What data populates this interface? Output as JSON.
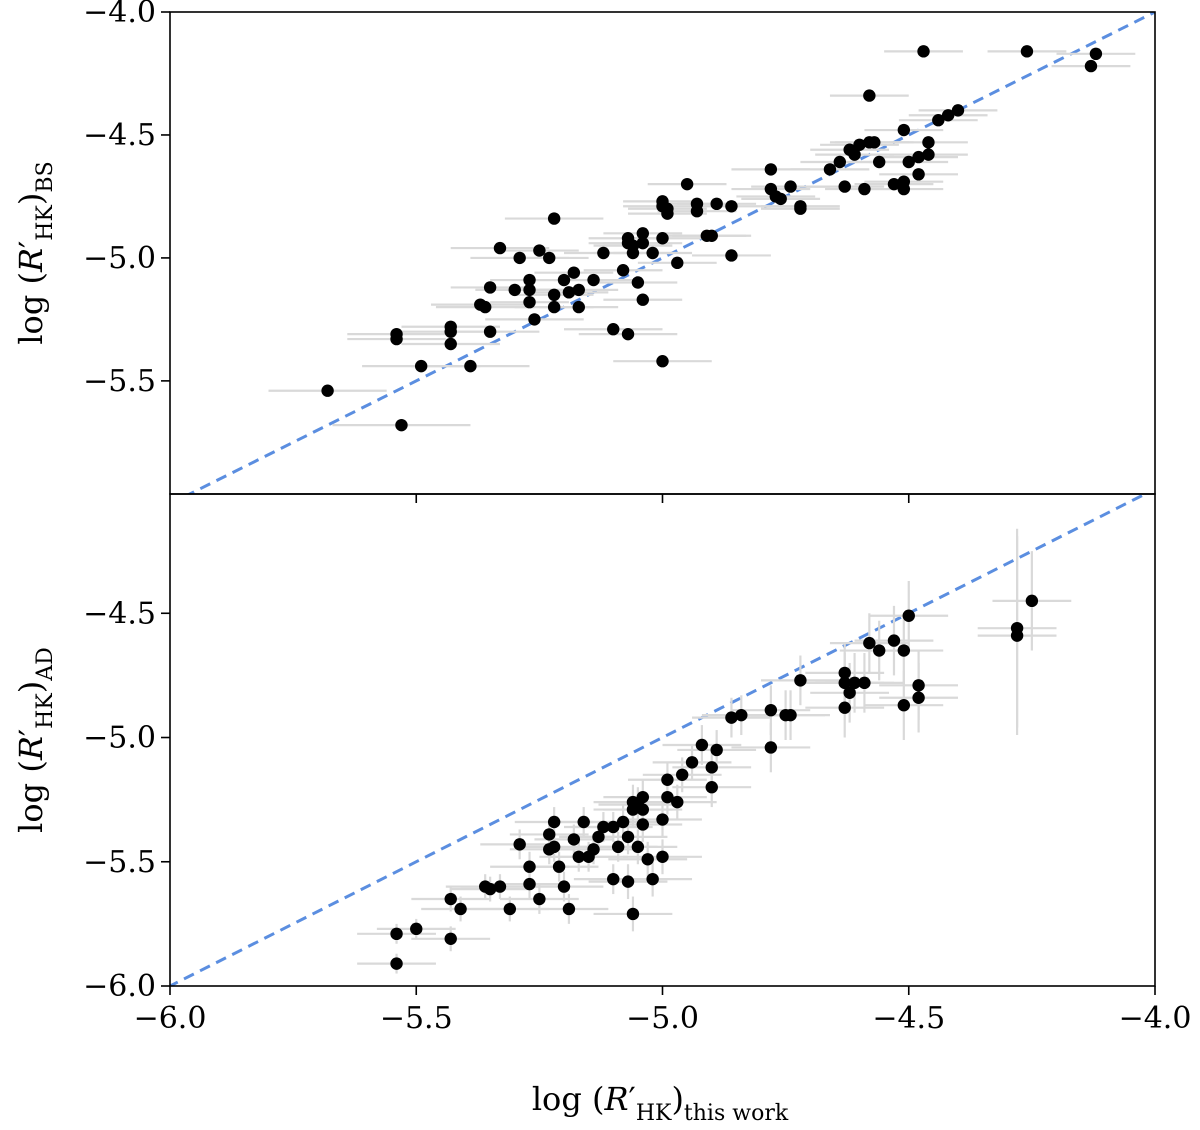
{
  "chart_data": [
    {
      "type": "scatter",
      "panel": "top",
      "ylabel": {
        "prefix": "log",
        "sub": "BS"
      },
      "xlim": [
        -6.0,
        -4.0
      ],
      "ylim": [
        -6.0,
        -4.0
      ],
      "y_ticks": [
        -4.0,
        -4.5,
        -5.0,
        -5.5
      ],
      "y_tick_labels": [
        "−4.0",
        "−4.5",
        "−5.0",
        "−5.5"
      ],
      "x_ticks": [
        -5.5,
        -5.0,
        -4.5
      ],
      "reference_line": {
        "style": "dashed",
        "color": "#5b8ee0",
        "slope": 1,
        "intercept": 0
      },
      "points": [
        [
          -5.68,
          -5.54,
          0.12
        ],
        [
          -5.54,
          -5.31,
          0.1
        ],
        [
          -5.54,
          -5.33,
          0.1
        ],
        [
          -5.53,
          -5.68,
          0.14
        ],
        [
          -5.49,
          -5.44,
          0.12
        ],
        [
          -5.43,
          -5.28,
          0.1
        ],
        [
          -5.43,
          -5.3,
          0.1
        ],
        [
          -5.43,
          -5.35,
          0.1
        ],
        [
          -5.39,
          -5.44,
          0.12
        ],
        [
          -5.37,
          -5.19,
          0.1
        ],
        [
          -5.36,
          -5.2,
          0.1
        ],
        [
          -5.35,
          -5.12,
          0.08
        ],
        [
          -5.35,
          -5.3,
          0.1
        ],
        [
          -5.33,
          -4.96,
          0.1
        ],
        [
          -5.3,
          -5.13,
          0.08
        ],
        [
          -5.29,
          -5.0,
          0.1
        ],
        [
          -5.27,
          -5.09,
          0.08
        ],
        [
          -5.27,
          -5.13,
          0.08
        ],
        [
          -5.27,
          -5.18,
          0.08
        ],
        [
          -5.26,
          -5.25,
          0.1
        ],
        [
          -5.25,
          -4.97,
          0.08
        ],
        [
          -5.23,
          -5.0,
          0.08
        ],
        [
          -5.22,
          -4.84,
          0.1
        ],
        [
          -5.22,
          -5.15,
          0.08
        ],
        [
          -5.22,
          -5.2,
          0.08
        ],
        [
          -5.2,
          -5.09,
          0.08
        ],
        [
          -5.19,
          -5.14,
          0.08
        ],
        [
          -5.18,
          -5.06,
          0.08
        ],
        [
          -5.17,
          -5.13,
          0.08
        ],
        [
          -5.17,
          -5.2,
          0.08
        ],
        [
          -5.14,
          -5.09,
          0.08
        ],
        [
          -5.12,
          -4.98,
          0.08
        ],
        [
          -5.1,
          -5.29,
          0.1
        ],
        [
          -5.08,
          -5.05,
          0.08
        ],
        [
          -5.07,
          -4.92,
          0.08
        ],
        [
          -5.07,
          -4.94,
          0.08
        ],
        [
          -5.07,
          -5.31,
          0.1
        ],
        [
          -5.06,
          -4.95,
          0.08
        ],
        [
          -5.06,
          -4.98,
          0.08
        ],
        [
          -5.05,
          -5.1,
          0.08
        ],
        [
          -5.04,
          -4.9,
          0.08
        ],
        [
          -5.04,
          -4.94,
          0.08
        ],
        [
          -5.04,
          -5.17,
          0.08
        ],
        [
          -5.02,
          -4.98,
          0.08
        ],
        [
          -5.0,
          -4.77,
          0.08
        ],
        [
          -5.0,
          -4.79,
          0.08
        ],
        [
          -5.0,
          -4.92,
          0.08
        ],
        [
          -5.0,
          -5.42,
          0.1
        ],
        [
          -4.99,
          -4.8,
          0.08
        ],
        [
          -4.99,
          -4.82,
          0.08
        ],
        [
          -4.97,
          -5.02,
          0.08
        ],
        [
          -4.95,
          -4.7,
          0.08
        ],
        [
          -4.93,
          -4.78,
          0.08
        ],
        [
          -4.93,
          -4.81,
          0.08
        ],
        [
          -4.91,
          -4.91,
          0.08
        ],
        [
          -4.9,
          -4.91,
          0.08
        ],
        [
          -4.89,
          -4.78,
          0.08
        ],
        [
          -4.86,
          -4.79,
          0.08
        ],
        [
          -4.86,
          -4.99,
          0.08
        ],
        [
          -4.78,
          -4.64,
          0.08
        ],
        [
          -4.78,
          -4.72,
          0.08
        ],
        [
          -4.77,
          -4.75,
          0.08
        ],
        [
          -4.76,
          -4.76,
          0.08
        ],
        [
          -4.74,
          -4.71,
          0.08
        ],
        [
          -4.72,
          -4.79,
          0.08
        ],
        [
          -4.72,
          -4.8,
          0.08
        ],
        [
          -4.66,
          -4.64,
          0.08
        ],
        [
          -4.64,
          -4.61,
          0.08
        ],
        [
          -4.63,
          -4.71,
          0.08
        ],
        [
          -4.62,
          -4.56,
          0.08
        ],
        [
          -4.61,
          -4.58,
          0.08
        ],
        [
          -4.6,
          -4.54,
          0.08
        ],
        [
          -4.59,
          -4.72,
          0.08
        ],
        [
          -4.58,
          -4.34,
          0.08
        ],
        [
          -4.58,
          -4.53,
          0.08
        ],
        [
          -4.57,
          -4.53,
          0.08
        ],
        [
          -4.56,
          -4.61,
          0.08
        ],
        [
          -4.53,
          -4.7,
          0.08
        ],
        [
          -4.51,
          -4.48,
          0.08
        ],
        [
          -4.51,
          -4.69,
          0.08
        ],
        [
          -4.51,
          -4.72,
          0.08
        ],
        [
          -4.5,
          -4.61,
          0.08
        ],
        [
          -4.48,
          -4.59,
          0.08
        ],
        [
          -4.48,
          -4.66,
          0.08
        ],
        [
          -4.47,
          -4.16,
          0.08
        ],
        [
          -4.46,
          -4.53,
          0.08
        ],
        [
          -4.46,
          -4.58,
          0.08
        ],
        [
          -4.44,
          -4.44,
          0.08
        ],
        [
          -4.42,
          -4.42,
          0.08
        ],
        [
          -4.4,
          -4.4,
          0.08
        ],
        [
          -4.26,
          -4.16,
          0.08
        ],
        [
          -4.13,
          -4.22,
          0.08
        ],
        [
          -4.12,
          -4.17,
          0.08
        ]
      ]
    },
    {
      "type": "scatter",
      "panel": "bottom",
      "ylabel": {
        "prefix": "log",
        "sub": "AD"
      },
      "xlabel": {
        "prefix": "log",
        "sub": "this work"
      },
      "xlim": [
        -6.0,
        -4.0
      ],
      "ylim": [
        -6.0,
        -4.0
      ],
      "y_ticks": [
        -4.5,
        -5.0,
        -5.5,
        -6.0
      ],
      "y_tick_labels": [
        "−4.5",
        "−5.0",
        "−5.5",
        "−6.0"
      ],
      "x_ticks": [
        -6.0,
        -5.5,
        -5.0,
        -4.5,
        -4.0
      ],
      "x_tick_labels": [
        "−6.0",
        "−5.5",
        "−5.0",
        "−4.5",
        "−4.0"
      ],
      "reference_line": {
        "style": "dashed",
        "color": "#5b8ee0",
        "slope": 1,
        "intercept": 0
      },
      "points": [
        [
          -5.54,
          -5.79,
          0.08,
          0.04
        ],
        [
          -5.54,
          -5.91,
          0.08,
          0.04
        ],
        [
          -5.5,
          -5.77,
          0.08,
          0.04
        ],
        [
          -5.43,
          -5.65,
          0.08,
          0.05
        ],
        [
          -5.43,
          -5.81,
          0.08,
          0.05
        ],
        [
          -5.41,
          -5.69,
          0.08,
          0.05
        ],
        [
          -5.36,
          -5.6,
          0.08,
          0.05
        ],
        [
          -5.35,
          -5.61,
          0.08,
          0.05
        ],
        [
          -5.33,
          -5.6,
          0.08,
          0.05
        ],
        [
          -5.31,
          -5.69,
          0.08,
          0.05
        ],
        [
          -5.29,
          -5.43,
          0.08,
          0.06
        ],
        [
          -5.27,
          -5.52,
          0.08,
          0.06
        ],
        [
          -5.27,
          -5.59,
          0.08,
          0.06
        ],
        [
          -5.25,
          -5.65,
          0.08,
          0.06
        ],
        [
          -5.23,
          -5.39,
          0.08,
          0.06
        ],
        [
          -5.23,
          -5.45,
          0.08,
          0.06
        ],
        [
          -5.22,
          -5.34,
          0.08,
          0.06
        ],
        [
          -5.22,
          -5.44,
          0.08,
          0.06
        ],
        [
          -5.21,
          -5.52,
          0.08,
          0.06
        ],
        [
          -5.2,
          -5.6,
          0.08,
          0.06
        ],
        [
          -5.19,
          -5.69,
          0.08,
          0.06
        ],
        [
          -5.18,
          -5.41,
          0.08,
          0.06
        ],
        [
          -5.17,
          -5.48,
          0.08,
          0.06
        ],
        [
          -5.16,
          -5.34,
          0.08,
          0.06
        ],
        [
          -5.15,
          -5.48,
          0.08,
          0.06
        ],
        [
          -5.14,
          -5.45,
          0.08,
          0.06
        ],
        [
          -5.13,
          -5.4,
          0.08,
          0.06
        ],
        [
          -5.12,
          -5.36,
          0.08,
          0.06
        ],
        [
          -5.1,
          -5.57,
          0.08,
          0.06
        ],
        [
          -5.1,
          -5.36,
          0.08,
          0.06
        ],
        [
          -5.09,
          -5.44,
          0.08,
          0.06
        ],
        [
          -5.08,
          -5.34,
          0.08,
          0.07
        ],
        [
          -5.07,
          -5.4,
          0.08,
          0.07
        ],
        [
          -5.07,
          -5.58,
          0.08,
          0.07
        ],
        [
          -5.06,
          -5.26,
          0.08,
          0.07
        ],
        [
          -5.06,
          -5.29,
          0.08,
          0.07
        ],
        [
          -5.06,
          -5.71,
          0.08,
          0.07
        ],
        [
          -5.05,
          -5.27,
          0.08,
          0.07
        ],
        [
          -5.05,
          -5.44,
          0.08,
          0.07
        ],
        [
          -5.04,
          -5.24,
          0.08,
          0.07
        ],
        [
          -5.04,
          -5.29,
          0.08,
          0.07
        ],
        [
          -5.04,
          -5.35,
          0.08,
          0.07
        ],
        [
          -5.03,
          -5.49,
          0.08,
          0.07
        ],
        [
          -5.02,
          -5.57,
          0.08,
          0.07
        ],
        [
          -5.0,
          -5.33,
          0.08,
          0.07
        ],
        [
          -5.0,
          -5.48,
          0.08,
          0.07
        ],
        [
          -4.99,
          -5.17,
          0.08,
          0.07
        ],
        [
          -4.99,
          -5.24,
          0.08,
          0.07
        ],
        [
          -4.97,
          -5.26,
          0.08,
          0.07
        ],
        [
          -4.96,
          -5.15,
          0.08,
          0.07
        ],
        [
          -4.94,
          -5.1,
          0.08,
          0.07
        ],
        [
          -4.92,
          -5.03,
          0.08,
          0.08
        ],
        [
          -4.9,
          -5.12,
          0.08,
          0.08
        ],
        [
          -4.9,
          -5.2,
          0.08,
          0.08
        ],
        [
          -4.89,
          -5.05,
          0.08,
          0.08
        ],
        [
          -4.86,
          -4.92,
          0.08,
          0.08
        ],
        [
          -4.84,
          -4.91,
          0.08,
          0.08
        ],
        [
          -4.78,
          -4.89,
          0.08,
          0.1
        ],
        [
          -4.78,
          -5.04,
          0.08,
          0.1
        ],
        [
          -4.75,
          -4.91,
          0.08,
          0.1
        ],
        [
          -4.74,
          -4.91,
          0.08,
          0.1
        ],
        [
          -4.72,
          -4.77,
          0.08,
          0.1
        ],
        [
          -4.63,
          -4.74,
          0.08,
          0.12
        ],
        [
          -4.63,
          -4.78,
          0.08,
          0.12
        ],
        [
          -4.63,
          -4.88,
          0.08,
          0.12
        ],
        [
          -4.62,
          -4.82,
          0.08,
          0.12
        ],
        [
          -4.61,
          -4.78,
          0.08,
          0.12
        ],
        [
          -4.59,
          -4.78,
          0.08,
          0.12
        ],
        [
          -4.58,
          -4.62,
          0.08,
          0.12
        ],
        [
          -4.56,
          -4.65,
          0.08,
          0.12
        ],
        [
          -4.53,
          -4.61,
          0.08,
          0.14
        ],
        [
          -4.51,
          -4.65,
          0.08,
          0.14
        ],
        [
          -4.51,
          -4.87,
          0.08,
          0.14
        ],
        [
          -4.5,
          -4.51,
          0.08,
          0.14
        ],
        [
          -4.48,
          -4.79,
          0.08,
          0.14
        ],
        [
          -4.48,
          -4.84,
          0.08,
          0.14
        ],
        [
          -4.28,
          -4.56,
          0.08,
          0.4
        ],
        [
          -4.28,
          -4.59,
          0.08,
          0.4
        ],
        [
          -4.25,
          -4.45,
          0.08,
          0.2
        ]
      ]
    }
  ]
}
